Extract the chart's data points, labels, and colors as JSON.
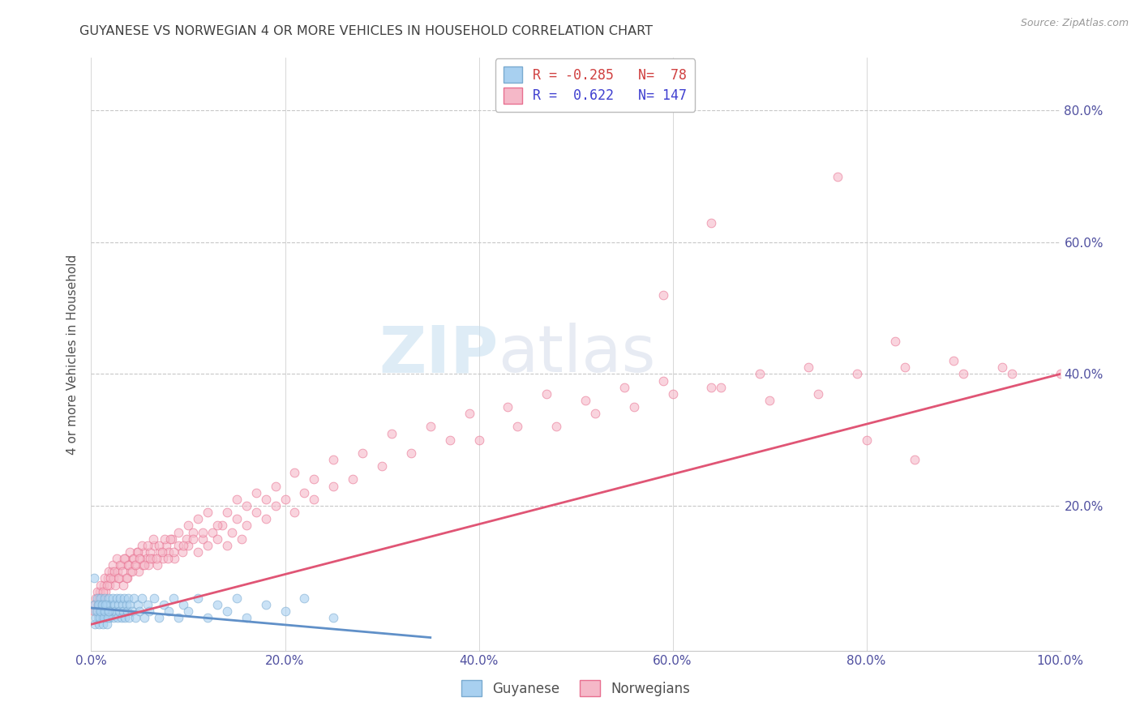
{
  "title": "GUYANESE VS NORWEGIAN 4 OR MORE VEHICLES IN HOUSEHOLD CORRELATION CHART",
  "source_text": "Source: ZipAtlas.com",
  "ylabel": "4 or more Vehicles in Household",
  "xlim": [
    0.0,
    1.0
  ],
  "ylim": [
    -0.02,
    0.88
  ],
  "x_tick_vals": [
    0.0,
    0.2,
    0.4,
    0.6,
    0.8,
    1.0
  ],
  "x_tick_labels": [
    "0.0%",
    "20.0%",
    "40.0%",
    "60.0%",
    "80.0%",
    "100.0%"
  ],
  "y_tick_vals": [
    0.2,
    0.4,
    0.6,
    0.8
  ],
  "y_tick_labels": [
    "20.0%",
    "40.0%",
    "60.0%",
    "80.0%"
  ],
  "color_guyanese_fill": "#A8D0F0",
  "color_guyanese_edge": "#7AAAD0",
  "color_norwegian_fill": "#F5B8C8",
  "color_norwegian_edge": "#E87090",
  "color_line_guyanese": "#6090C8",
  "color_line_norwegian": "#E05575",
  "marker_size": 60,
  "alpha_scatter": 0.6,
  "watermark_zip": "ZIP",
  "watermark_atlas": "atlas",
  "background_color": "#FFFFFF",
  "grid_color": "#C8C8C8",
  "title_color": "#404040",
  "axis_label_color": "#505050",
  "tick_color": "#5050A0",
  "r_color_neg": "#D04040",
  "r_color_pos": "#4040D0",
  "n_color": "#4040D0",
  "guyanese_line_x": [
    0.0,
    0.35
  ],
  "guyanese_line_y": [
    0.045,
    0.0
  ],
  "norwegian_line_x": [
    0.0,
    1.0
  ],
  "norwegian_line_y": [
    0.02,
    0.4
  ],
  "guyanese_x": [
    0.003,
    0.005,
    0.006,
    0.007,
    0.008,
    0.009,
    0.01,
    0.011,
    0.012,
    0.013,
    0.014,
    0.015,
    0.016,
    0.017,
    0.018,
    0.019,
    0.02,
    0.021,
    0.022,
    0.023,
    0.024,
    0.025,
    0.026,
    0.027,
    0.028,
    0.029,
    0.03,
    0.031,
    0.032,
    0.033,
    0.034,
    0.035,
    0.036,
    0.037,
    0.038,
    0.039,
    0.04,
    0.042,
    0.044,
    0.046,
    0.048,
    0.05,
    0.052,
    0.055,
    0.058,
    0.06,
    0.065,
    0.07,
    0.075,
    0.08,
    0.085,
    0.09,
    0.095,
    0.1,
    0.11,
    0.12,
    0.13,
    0.14,
    0.15,
    0.16,
    0.18,
    0.2,
    0.22,
    0.25,
    0.003,
    0.004,
    0.005,
    0.006,
    0.007,
    0.008,
    0.009,
    0.01,
    0.011,
    0.012,
    0.013,
    0.014,
    0.015,
    0.016,
    0.017,
    0.018
  ],
  "guyanese_y": [
    0.05,
    0.04,
    0.06,
    0.03,
    0.05,
    0.04,
    0.06,
    0.03,
    0.05,
    0.04,
    0.06,
    0.03,
    0.05,
    0.04,
    0.06,
    0.03,
    0.05,
    0.04,
    0.06,
    0.03,
    0.05,
    0.04,
    0.06,
    0.03,
    0.05,
    0.04,
    0.06,
    0.03,
    0.05,
    0.04,
    0.06,
    0.03,
    0.05,
    0.04,
    0.06,
    0.03,
    0.05,
    0.04,
    0.06,
    0.03,
    0.05,
    0.04,
    0.06,
    0.03,
    0.05,
    0.04,
    0.06,
    0.03,
    0.05,
    0.04,
    0.06,
    0.03,
    0.05,
    0.04,
    0.06,
    0.03,
    0.05,
    0.04,
    0.06,
    0.03,
    0.05,
    0.04,
    0.06,
    0.03,
    0.09,
    0.02,
    0.03,
    0.04,
    0.05,
    0.02,
    0.03,
    0.04,
    0.05,
    0.02,
    0.03,
    0.04,
    0.05,
    0.02,
    0.03,
    0.04
  ],
  "norwegian_x": [
    0.003,
    0.005,
    0.007,
    0.009,
    0.011,
    0.013,
    0.015,
    0.017,
    0.019,
    0.021,
    0.023,
    0.025,
    0.027,
    0.029,
    0.031,
    0.033,
    0.035,
    0.037,
    0.039,
    0.041,
    0.043,
    0.045,
    0.047,
    0.049,
    0.051,
    0.053,
    0.055,
    0.057,
    0.059,
    0.061,
    0.063,
    0.065,
    0.068,
    0.071,
    0.074,
    0.077,
    0.08,
    0.083,
    0.086,
    0.09,
    0.094,
    0.098,
    0.1,
    0.105,
    0.11,
    0.115,
    0.12,
    0.125,
    0.13,
    0.135,
    0.14,
    0.145,
    0.15,
    0.155,
    0.16,
    0.17,
    0.18,
    0.19,
    0.2,
    0.21,
    0.22,
    0.23,
    0.25,
    0.27,
    0.3,
    0.33,
    0.37,
    0.4,
    0.44,
    0.48,
    0.52,
    0.56,
    0.6,
    0.65,
    0.7,
    0.75,
    0.8,
    0.85,
    0.9,
    0.95,
    1.0,
    0.004,
    0.006,
    0.008,
    0.01,
    0.012,
    0.014,
    0.016,
    0.018,
    0.02,
    0.022,
    0.024,
    0.026,
    0.028,
    0.03,
    0.032,
    0.034,
    0.036,
    0.038,
    0.04,
    0.042,
    0.044,
    0.046,
    0.048,
    0.05,
    0.052,
    0.055,
    0.058,
    0.061,
    0.064,
    0.067,
    0.07,
    0.073,
    0.076,
    0.079,
    0.082,
    0.085,
    0.09,
    0.095,
    0.1,
    0.105,
    0.11,
    0.115,
    0.12,
    0.13,
    0.14,
    0.15,
    0.16,
    0.17,
    0.18,
    0.19,
    0.21,
    0.23,
    0.25,
    0.28,
    0.31,
    0.35,
    0.39,
    0.43,
    0.47,
    0.51,
    0.55,
    0.59,
    0.64,
    0.69,
    0.74,
    0.79,
    0.84,
    0.89,
    0.94,
    0.59,
    0.64,
    0.77,
    0.83
  ],
  "norwegian_y": [
    0.04,
    0.06,
    0.05,
    0.07,
    0.06,
    0.08,
    0.07,
    0.09,
    0.08,
    0.1,
    0.09,
    0.08,
    0.1,
    0.09,
    0.11,
    0.08,
    0.12,
    0.09,
    0.11,
    0.1,
    0.12,
    0.11,
    0.13,
    0.1,
    0.12,
    0.11,
    0.13,
    0.12,
    0.11,
    0.13,
    0.12,
    0.14,
    0.11,
    0.13,
    0.12,
    0.14,
    0.13,
    0.15,
    0.12,
    0.14,
    0.13,
    0.15,
    0.14,
    0.16,
    0.13,
    0.15,
    0.14,
    0.16,
    0.15,
    0.17,
    0.14,
    0.16,
    0.18,
    0.15,
    0.17,
    0.19,
    0.18,
    0.2,
    0.21,
    0.19,
    0.22,
    0.21,
    0.23,
    0.24,
    0.26,
    0.28,
    0.3,
    0.3,
    0.32,
    0.32,
    0.34,
    0.35,
    0.37,
    0.38,
    0.36,
    0.37,
    0.3,
    0.27,
    0.4,
    0.4,
    0.4,
    0.05,
    0.07,
    0.06,
    0.08,
    0.07,
    0.09,
    0.08,
    0.1,
    0.09,
    0.11,
    0.1,
    0.12,
    0.09,
    0.11,
    0.1,
    0.12,
    0.09,
    0.11,
    0.13,
    0.1,
    0.12,
    0.11,
    0.13,
    0.12,
    0.14,
    0.11,
    0.14,
    0.12,
    0.15,
    0.12,
    0.14,
    0.13,
    0.15,
    0.12,
    0.15,
    0.13,
    0.16,
    0.14,
    0.17,
    0.15,
    0.18,
    0.16,
    0.19,
    0.17,
    0.19,
    0.21,
    0.2,
    0.22,
    0.21,
    0.23,
    0.25,
    0.24,
    0.27,
    0.28,
    0.31,
    0.32,
    0.34,
    0.35,
    0.37,
    0.36,
    0.38,
    0.39,
    0.38,
    0.4,
    0.41,
    0.4,
    0.41,
    0.42,
    0.41,
    0.52,
    0.63,
    0.7,
    0.45
  ]
}
